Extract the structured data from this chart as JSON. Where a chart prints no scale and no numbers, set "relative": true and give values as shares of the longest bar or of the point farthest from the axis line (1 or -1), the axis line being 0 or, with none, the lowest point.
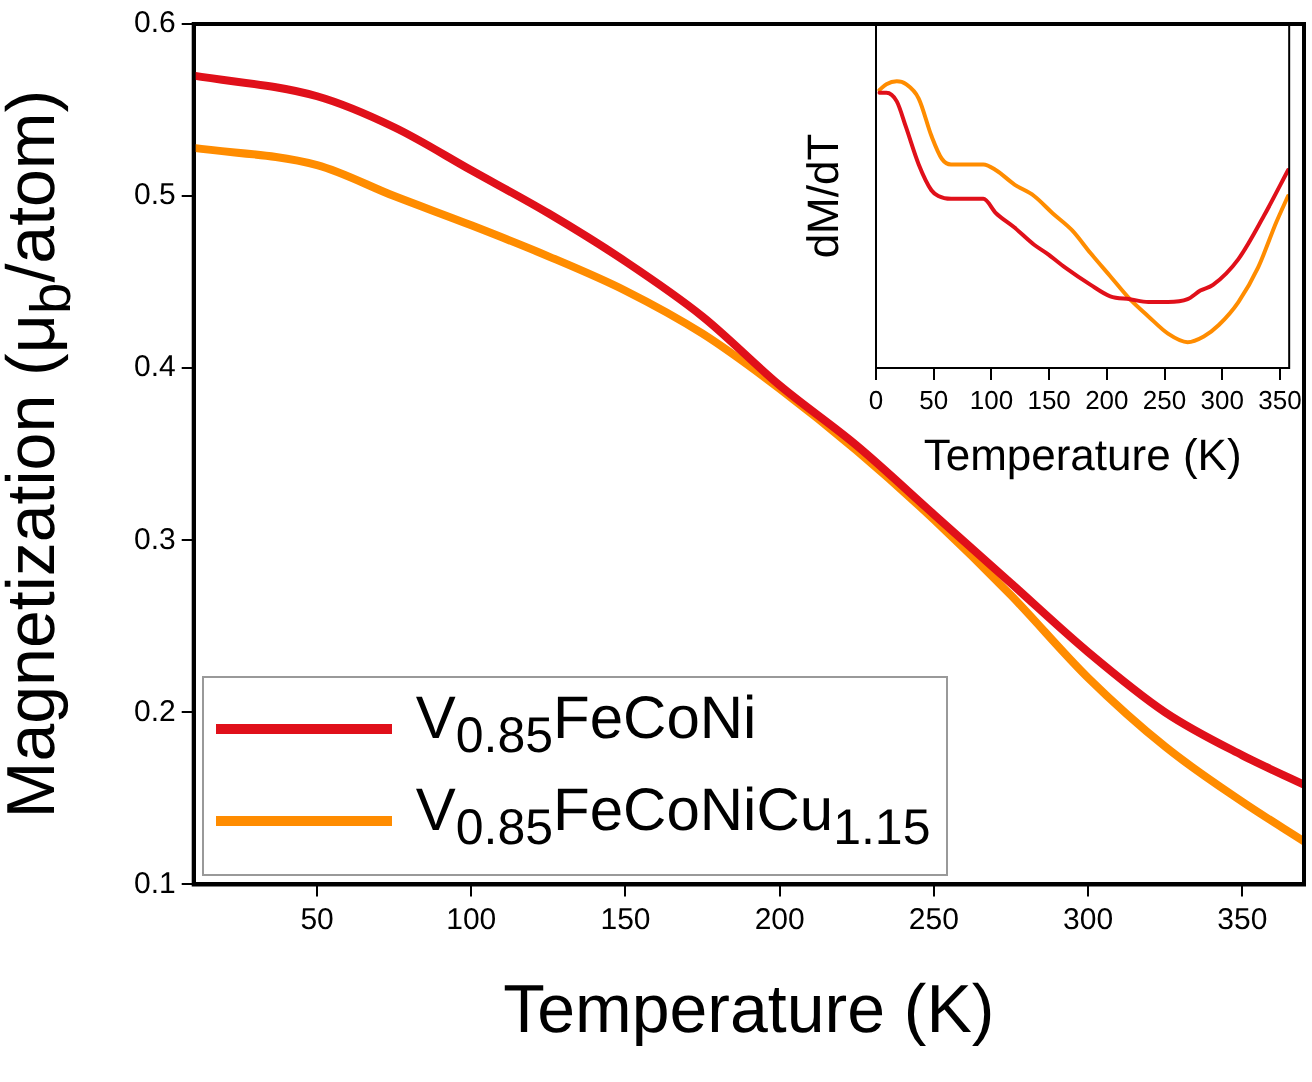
{
  "chart_data": [
    {
      "type": "line",
      "xlabel": "Temperature (K)",
      "ylabel": "Magnetization (μ$_{b}$/atom)",
      "xlim": [
        10,
        370
      ],
      "xticks": [
        50,
        100,
        150,
        200,
        250,
        300,
        350
      ],
      "ylim": [
        0.1,
        0.6
      ],
      "yticks": [
        0.1,
        0.2,
        0.3,
        0.4,
        0.5,
        0.6
      ],
      "grid": false,
      "legend": "bottom left",
      "marker": "none",
      "line_style": "solid",
      "x": [
        10,
        50,
        75,
        100,
        125,
        150,
        175,
        200,
        225,
        250,
        275,
        300,
        325,
        350,
        370
      ],
      "series": [
        {
          "name": "V$_{0.85}$FeCoNi",
          "color": "#e0101a",
          "values": [
            0.57,
            0.558,
            0.54,
            0.515,
            0.49,
            0.462,
            0.43,
            0.39,
            0.355,
            0.315,
            0.275,
            0.235,
            0.2,
            0.175,
            0.158
          ]
        },
        {
          "name": "V$_{0.85}$FeCoNiCu$_{1.15}$",
          "color": "#ff8c00",
          "values": [
            0.528,
            0.518,
            0.5,
            0.483,
            0.465,
            0.445,
            0.42,
            0.388,
            0.352,
            0.312,
            0.268,
            0.22,
            0.18,
            0.148,
            0.125
          ]
        }
      ]
    },
    {
      "type": "line",
      "xlabel": "Temperature (K)",
      "ylabel": "dM/dT",
      "relative": true,
      "xlim": [
        0,
        358
      ],
      "xticks": [
        0,
        50,
        100,
        150,
        200,
        250,
        300,
        350
      ],
      "tick_labels": "x",
      "grid": false,
      "marker": "none",
      "line_style": "solid",
      "series": [
        {
          "color": "#e0101a",
          "x": [
            3,
            9,
            18,
            26,
            37,
            48,
            54,
            65,
            79,
            93,
            104,
            120,
            137,
            148,
            164,
            186,
            203,
            220,
            236,
            253,
            270,
            281,
            292,
            314,
            336,
            357
          ],
          "values": [
            0.96,
            0.96,
            0.93,
            0.84,
            0.71,
            0.62,
            0.6,
            0.59,
            0.59,
            0.59,
            0.54,
            0.49,
            0.43,
            0.4,
            0.35,
            0.29,
            0.25,
            0.24,
            0.23,
            0.23,
            0.24,
            0.27,
            0.29,
            0.38,
            0.53,
            0.69
          ]
        },
        {
          "color": "#ff8c00",
          "x": [
            3,
            9,
            18,
            26,
            37,
            48,
            57,
            65,
            79,
            93,
            104,
            120,
            137,
            153,
            170,
            186,
            203,
            220,
            236,
            253,
            270,
            284,
            297,
            314,
            331,
            347,
            357
          ],
          "values": [
            0.97,
            0.99,
            1,
            0.99,
            0.94,
            0.81,
            0.73,
            0.71,
            0.71,
            0.71,
            0.69,
            0.64,
            0.6,
            0.54,
            0.48,
            0.4,
            0.32,
            0.24,
            0.18,
            0.12,
            0.09,
            0.11,
            0.15,
            0.23,
            0.35,
            0.51,
            0.6
          ]
        }
      ]
    }
  ]
}
